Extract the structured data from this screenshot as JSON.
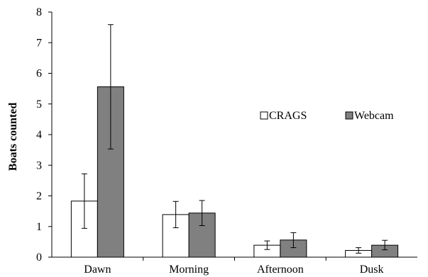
{
  "chart_data": {
    "type": "bar",
    "categories": [
      "Dawn",
      "Morning",
      "Afternoon",
      "Dusk"
    ],
    "series": [
      {
        "name": "CRAGS",
        "color": "#ffffff",
        "values": [
          1.83,
          1.39,
          0.39,
          0.22
        ],
        "error_low": [
          0.94,
          0.96,
          0.25,
          0.13
        ],
        "error_high": [
          2.72,
          1.82,
          0.53,
          0.31
        ]
      },
      {
        "name": "Webcam",
        "color": "#808080",
        "values": [
          5.56,
          1.44,
          0.56,
          0.39
        ],
        "error_low": [
          3.53,
          1.03,
          0.31,
          0.24
        ],
        "error_high": [
          7.59,
          1.85,
          0.8,
          0.55
        ]
      }
    ],
    "ylabel": "Boats counted",
    "xlabel": "",
    "title": "",
    "ylim": [
      0,
      8
    ],
    "yticks": [
      "0",
      "1",
      "2",
      "3",
      "4",
      "5",
      "6",
      "7",
      "8"
    ],
    "grid": false,
    "legend_position": "top-right"
  }
}
